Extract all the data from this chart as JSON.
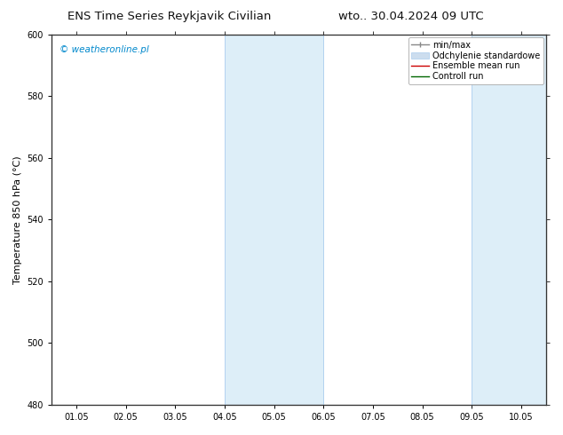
{
  "title_left": "ENS Time Series Reykjavik Civilian",
  "title_right": "wto.. 30.04.2024 09 UTC",
  "ylabel": "Temperature 850 hPa (°C)",
  "ylim": [
    480,
    600
  ],
  "yticks": [
    480,
    500,
    520,
    540,
    560,
    580,
    600
  ],
  "xtick_labels": [
    "01.05",
    "02.05",
    "03.05",
    "04.05",
    "05.05",
    "06.05",
    "07.05",
    "08.05",
    "09.05",
    "10.05"
  ],
  "shaded_regions": [
    {
      "xstart": 3,
      "xend": 5,
      "color": "#ddeef8"
    },
    {
      "xstart": 8,
      "xend": 9.5,
      "color": "#ddeef8"
    }
  ],
  "shaded_border_color": "#aaccee",
  "watermark_text": "© weatheronline.pl",
  "watermark_color": "#0088cc",
  "background_color": "#ffffff",
  "legend_items": [
    {
      "label": "min/max",
      "color": "#888888",
      "lw": 1.0,
      "style": "line_with_caps"
    },
    {
      "label": "Odchylenie standardowe",
      "color": "#ccddee",
      "lw": 6,
      "style": "bar"
    },
    {
      "label": "Ensemble mean run",
      "color": "#cc0000",
      "lw": 1.0,
      "style": "line"
    },
    {
      "label": "Controll run",
      "color": "#006600",
      "lw": 1.0,
      "style": "line"
    }
  ],
  "title_fontsize": 9.5,
  "tick_fontsize": 7,
  "ylabel_fontsize": 8,
  "legend_fontsize": 7,
  "watermark_fontsize": 7.5
}
